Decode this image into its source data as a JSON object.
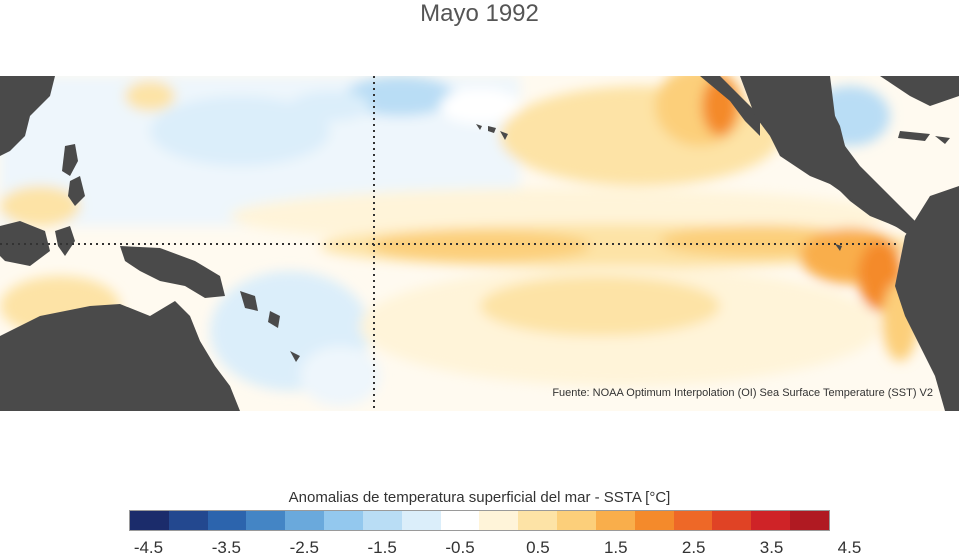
{
  "title": "Mayo 1992",
  "source": "Fuente: NOAA Optimum Interpolation (OI) Sea Surface Temperature (SST) V2",
  "legend": {
    "title": "Anomalias de temperatura superficial del mar - SSTA  [°C]",
    "colors": [
      "#1b2c6b",
      "#23488f",
      "#2c64ad",
      "#4485c5",
      "#6aa9dc",
      "#93c8ee",
      "#b9ddf5",
      "#dbeefa",
      "#ffffff",
      "#fff4d9",
      "#fde3a6",
      "#fccf7a",
      "#f9ae4b",
      "#f48a2b",
      "#ee6827",
      "#e04325",
      "#cf2327",
      "#b01a22"
    ],
    "ticks": [
      "-4.5",
      "-3.5",
      "-2.5",
      "-1.5",
      "-0.5",
      "0.5",
      "1.5",
      "2.5",
      "3.5",
      "4.5"
    ]
  },
  "map": {
    "land_color": "#4a4a4a",
    "equator_line": "dotted",
    "dateline_line": "dotted"
  }
}
